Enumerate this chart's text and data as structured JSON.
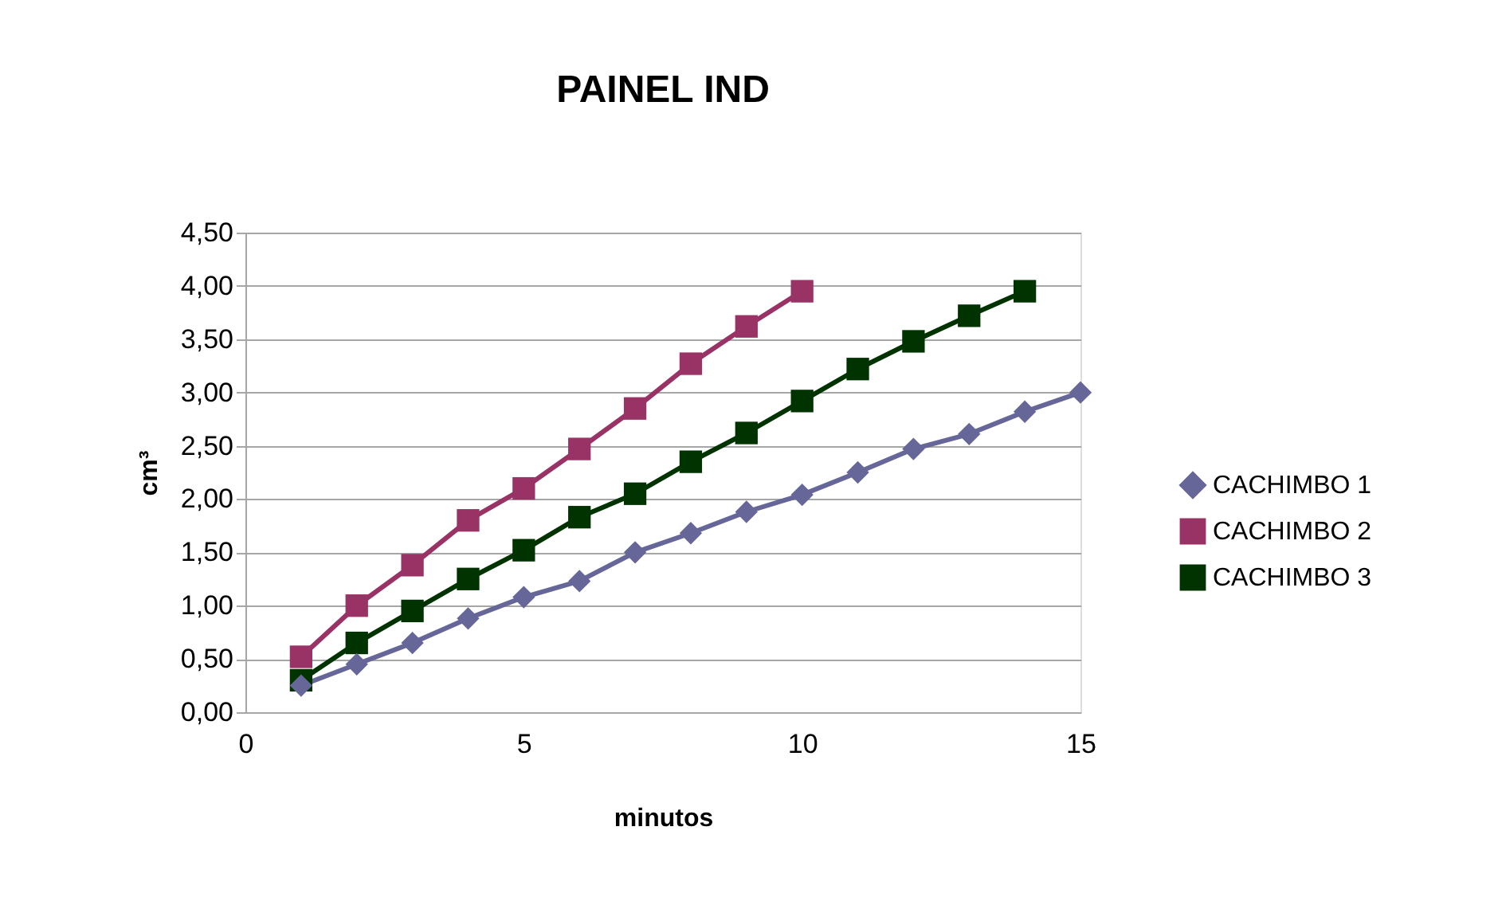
{
  "chart_data": {
    "type": "line",
    "title": "PAINEL IND",
    "xlabel": "minutos",
    "ylabel": "cm³",
    "xlim": [
      0,
      15
    ],
    "xticks": [
      0,
      5,
      10,
      15
    ],
    "ylim": [
      0,
      4.5
    ],
    "yticks": [
      {
        "value": 0,
        "label": "0,00"
      },
      {
        "value": 0.5,
        "label": "0,50"
      },
      {
        "value": 1,
        "label": "1,00"
      },
      {
        "value": 1.5,
        "label": "1,50"
      },
      {
        "value": 2,
        "label": "2,00"
      },
      {
        "value": 2.5,
        "label": "2,50"
      },
      {
        "value": 3,
        "label": "3,00"
      },
      {
        "value": 3.5,
        "label": "3,50"
      },
      {
        "value": 4,
        "label": "4,00"
      },
      {
        "value": 4.5,
        "label": "4,50"
      }
    ],
    "grid": "y",
    "legend": "right",
    "line_style": "solid",
    "series": [
      {
        "name": "CACHIMBO 1",
        "color": "#666699",
        "marker": "diamond",
        "x": [
          1,
          2,
          3,
          4,
          5,
          6,
          7,
          8,
          9,
          10,
          11,
          12,
          13,
          14,
          15
        ],
        "values": [
          0.25,
          0.45,
          0.65,
          0.88,
          1.08,
          1.23,
          1.5,
          1.68,
          1.88,
          2.04,
          2.25,
          2.47,
          2.61,
          2.82,
          3.0
        ]
      },
      {
        "name": "CACHIMBO 2",
        "color": "#993366",
        "marker": "square",
        "x": [
          1,
          2,
          3,
          4,
          5,
          6,
          7,
          8,
          9,
          10
        ],
        "values": [
          0.52,
          1.0,
          1.38,
          1.8,
          2.1,
          2.47,
          2.85,
          3.27,
          3.62,
          3.95
        ]
      },
      {
        "name": "CACHIMBO 3",
        "color": "#003300",
        "marker": "square",
        "x": [
          1,
          2,
          3,
          4,
          5,
          6,
          7,
          8,
          9,
          10,
          11,
          12,
          13,
          14
        ],
        "values": [
          0.3,
          0.65,
          0.95,
          1.25,
          1.52,
          1.83,
          2.05,
          2.35,
          2.62,
          2.92,
          3.22,
          3.48,
          3.72,
          3.95
        ]
      }
    ]
  }
}
